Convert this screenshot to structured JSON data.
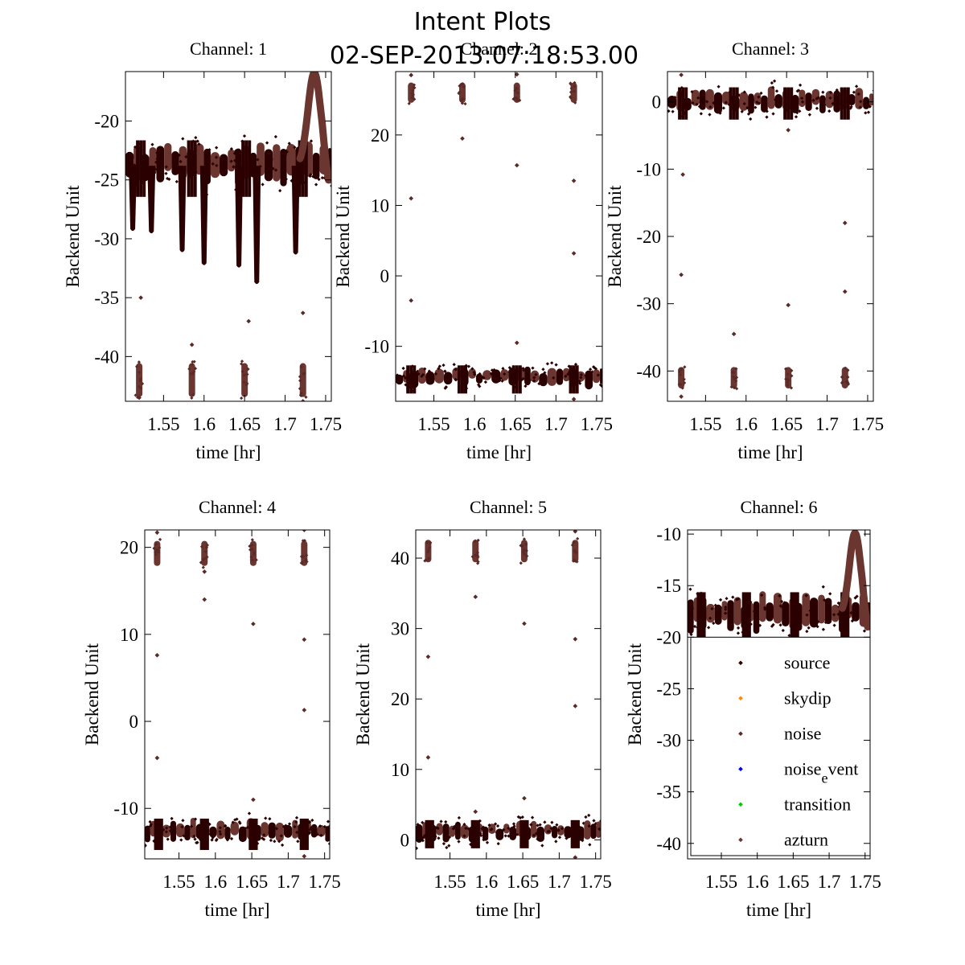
{
  "title": "Intent Plots",
  "subtitle": "02-SEP-2013:07:18:53.00",
  "colors": {
    "source": "#2b0000",
    "skydip": "#ff8c00",
    "noise": "#5a2a27",
    "noise_event": "#0000ff",
    "transition": "#00cc00",
    "azturn": "#6b3530"
  },
  "chart_data": [
    {
      "type": "scatter",
      "title": "Channel: 1",
      "xlabel": "time [hr]",
      "ylabel": "Backend Unit",
      "xlim": [
        1.503,
        1.757
      ],
      "ylim": [
        -43.8,
        -15.8
      ],
      "xticks": [
        1.55,
        1.6,
        1.65,
        1.7,
        1.75
      ],
      "xtick_labels": [
        "1.55",
        "1.6",
        "1.65",
        "1.7",
        "1.75"
      ],
      "yticks": [
        -20,
        -25,
        -30,
        -35,
        -40
      ],
      "ytick_labels": [
        "-20",
        "-25",
        "-30",
        "-35",
        "-40"
      ],
      "grid": false,
      "series": [
        {
          "intent": "source",
          "base": -23.8,
          "spread": 1.2
        },
        {
          "intent": "noise",
          "blocks": [
            1.52,
            1.585,
            1.65,
            1.722
          ],
          "value": -42.0,
          "spread": 0.9
        },
        {
          "intent": "azturn",
          "bump": {
            "center": 1.736,
            "peak": -15.9
          }
        },
        {
          "intent": "source",
          "dips": [
            [
              1.512,
              -29.3
            ],
            [
              1.535,
              -29.5
            ],
            [
              1.573,
              -31.1
            ],
            [
              1.6,
              -32.2
            ],
            [
              1.643,
              -32.4
            ],
            [
              1.665,
              -33.8
            ],
            [
              1.713,
              -31.3
            ]
          ]
        },
        {
          "intent": "noise",
          "outliers": [
            [
              1.522,
              -35.0
            ],
            [
              1.585,
              -39.0
            ],
            [
              1.655,
              -37.0
            ],
            [
              1.722,
              -36.3
            ],
            [
              1.52,
              -43.5
            ],
            [
              1.722,
              -43.8
            ]
          ]
        }
      ]
    },
    {
      "type": "scatter",
      "title": "Channel: 2",
      "xlabel": "time [hr]",
      "ylabel": "Backend Unit",
      "xlim": [
        1.503,
        1.757
      ],
      "ylim": [
        -17.8,
        29.0
      ],
      "xticks": [
        1.55,
        1.6,
        1.65,
        1.7,
        1.75
      ],
      "xtick_labels": [
        "1.55",
        "1.6",
        "1.65",
        "1.7",
        "1.75"
      ],
      "yticks": [
        20,
        10,
        0,
        -10
      ],
      "ytick_labels": [
        "20",
        "10",
        "0",
        "-10"
      ],
      "grid": false,
      "series": [
        {
          "intent": "source",
          "base": -14.5,
          "spread": 1.0
        },
        {
          "intent": "noise",
          "blocks": [
            1.522,
            1.585,
            1.652,
            1.722
          ],
          "value": 26.0,
          "spread": 0.9
        },
        {
          "intent": "noise",
          "outliers": [
            [
              1.522,
              11.0
            ],
            [
              1.522,
              -3.5
            ],
            [
              1.585,
              19.5
            ],
            [
              1.652,
              15.7
            ],
            [
              1.652,
              -9.5
            ],
            [
              1.722,
              13.5
            ],
            [
              1.722,
              3.2
            ],
            [
              1.522,
              28.5
            ],
            [
              1.652,
              28.6
            ],
            [
              1.722,
              -17.5
            ]
          ]
        }
      ]
    },
    {
      "type": "scatter",
      "title": "Channel: 3",
      "xlabel": "time [hr]",
      "ylabel": "Backend Unit",
      "xlim": [
        1.503,
        1.757
      ],
      "ylim": [
        -44.5,
        4.5
      ],
      "xticks": [
        1.55,
        1.6,
        1.65,
        1.7,
        1.75
      ],
      "xtick_labels": [
        "1.55",
        "1.6",
        "1.65",
        "1.7",
        "1.75"
      ],
      "yticks": [
        0,
        -10,
        -20,
        -30,
        -40
      ],
      "ytick_labels": [
        "0",
        "-10",
        "-20",
        "-30",
        "-40"
      ],
      "grid": false,
      "series": [
        {
          "intent": "source",
          "base": 0.0,
          "spread": 1.2
        },
        {
          "intent": "noise",
          "blocks": [
            1.52,
            1.585,
            1.652,
            1.722
          ],
          "value": -41.0,
          "spread": 1.0
        },
        {
          "intent": "noise",
          "outliers": [
            [
              1.522,
              -10.8
            ],
            [
              1.52,
              -25.7
            ],
            [
              1.585,
              -34.5
            ],
            [
              1.652,
              -30.2
            ],
            [
              1.652,
              -4.2
            ],
            [
              1.722,
              -18.0
            ],
            [
              1.722,
              -28.2
            ],
            [
              1.52,
              4.0
            ],
            [
              1.52,
              -43.8
            ]
          ]
        }
      ]
    },
    {
      "type": "scatter",
      "title": "Channel: 4",
      "xlabel": "time [hr]",
      "ylabel": "Backend Unit",
      "xlim": [
        1.503,
        1.757
      ],
      "ylim": [
        -15.8,
        22.0
      ],
      "xticks": [
        1.55,
        1.6,
        1.65,
        1.7,
        1.75
      ],
      "xtick_labels": [
        "1.55",
        "1.6",
        "1.65",
        "1.7",
        "1.75"
      ],
      "yticks": [
        20,
        10,
        0,
        -10
      ],
      "ytick_labels": [
        "20",
        "10",
        "0",
        "-10"
      ],
      "grid": false,
      "series": [
        {
          "intent": "source",
          "base": -12.8,
          "spread": 0.9
        },
        {
          "intent": "noise",
          "blocks": [
            1.52,
            1.585,
            1.652,
            1.722
          ],
          "value": 19.3,
          "spread": 0.9
        },
        {
          "intent": "noise",
          "outliers": [
            [
              1.52,
              7.6
            ],
            [
              1.52,
              -4.2
            ],
            [
              1.585,
              14.0
            ],
            [
              1.585,
              17.2
            ],
            [
              1.652,
              11.2
            ],
            [
              1.652,
              -9.0
            ],
            [
              1.722,
              9.4
            ],
            [
              1.722,
              1.3
            ],
            [
              1.52,
              21.7
            ],
            [
              1.722,
              22.0
            ],
            [
              1.722,
              -15.5
            ]
          ]
        }
      ]
    },
    {
      "type": "scatter",
      "title": "Channel: 5",
      "xlabel": "time [hr]",
      "ylabel": "Backend Unit",
      "xlim": [
        1.503,
        1.757
      ],
      "ylim": [
        -2.7,
        44.0
      ],
      "xticks": [
        1.55,
        1.6,
        1.65,
        1.7,
        1.75
      ],
      "xtick_labels": [
        "1.55",
        "1.6",
        "1.65",
        "1.7",
        "1.75"
      ],
      "yticks": [
        40,
        30,
        20,
        10,
        0
      ],
      "ytick_labels": [
        "40",
        "30",
        "20",
        "10",
        "0"
      ],
      "grid": false,
      "series": [
        {
          "intent": "source",
          "base": 1.0,
          "spread": 1.0
        },
        {
          "intent": "noise",
          "blocks": [
            1.52,
            1.585,
            1.652,
            1.722
          ],
          "value": 41.0,
          "spread": 1.0
        },
        {
          "intent": "noise",
          "outliers": [
            [
              1.52,
              26.0
            ],
            [
              1.52,
              11.7
            ],
            [
              1.585,
              34.5
            ],
            [
              1.652,
              30.7
            ],
            [
              1.652,
              5.9
            ],
            [
              1.722,
              28.5
            ],
            [
              1.722,
              19.0
            ],
            [
              1.585,
              4.0
            ],
            [
              1.722,
              43.8
            ],
            [
              1.722,
              -2.5
            ]
          ]
        }
      ]
    },
    {
      "type": "scatter",
      "title": "Channel: 6",
      "xlabel": "time [hr]",
      "ylabel": "Backend Unit",
      "xlim": [
        1.503,
        1.757
      ],
      "ylim": [
        -41.5,
        -9.6
      ],
      "xticks": [
        1.55,
        1.6,
        1.65,
        1.7,
        1.75
      ],
      "xtick_labels": [
        "1.55",
        "1.6",
        "1.65",
        "1.7",
        "1.75"
      ],
      "yticks": [
        -10,
        -15,
        -20,
        -25,
        -30,
        -35,
        -40
      ],
      "ytick_labels": [
        "-10",
        "-15",
        "-20",
        "-25",
        "-30",
        "-35",
        "-40"
      ],
      "grid": false,
      "legend_placement": "bottom-right",
      "legend": [
        {
          "label": "source",
          "intent": "source"
        },
        {
          "label": "skydip",
          "intent": "skydip"
        },
        {
          "label": "noise",
          "intent": "noise"
        },
        {
          "label": "noise_event",
          "label_main": "noise",
          "label_sub": "e",
          "label_sup": "vent",
          "intent": "noise_event"
        },
        {
          "label": "transition",
          "intent": "transition"
        },
        {
          "label": "azturn",
          "intent": "azturn"
        }
      ],
      "series": [
        {
          "intent": "source",
          "base": -17.8,
          "spread": 1.2
        },
        {
          "intent": "azturn",
          "bump": {
            "center": 1.736,
            "peak": -9.9
          }
        }
      ]
    }
  ]
}
